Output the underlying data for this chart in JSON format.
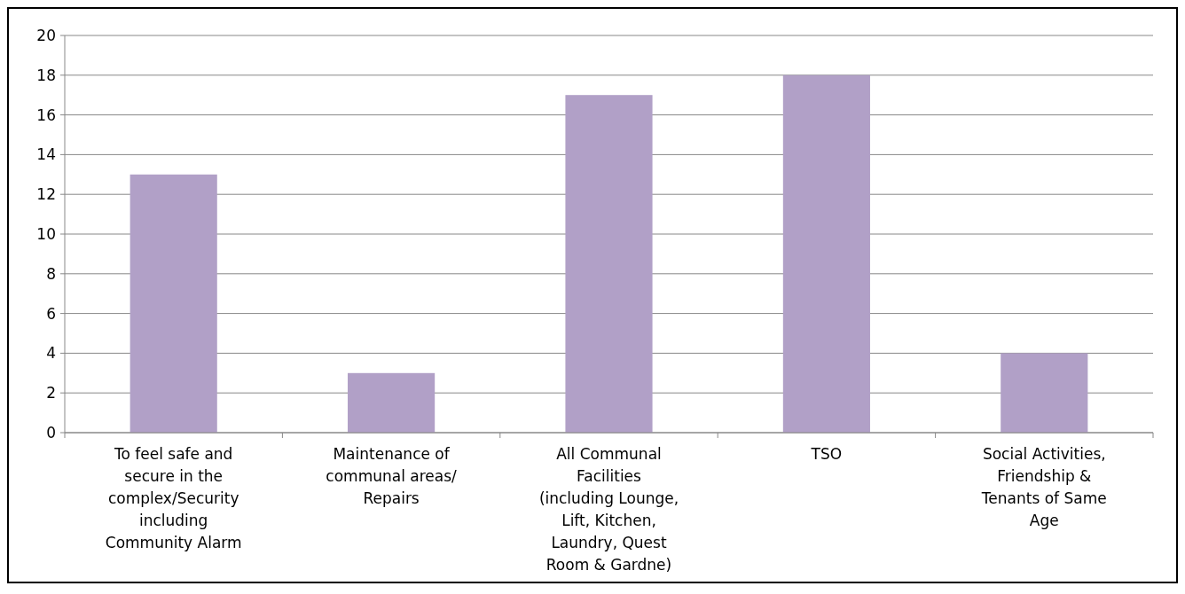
{
  "chart_data": {
    "type": "bar",
    "categories": [
      "To feel safe and secure in the complex/Security including Community Alarm",
      "Maintenance of communal areas/ Repairs",
      "All Communal Facilities (including Lounge, Lift, Kitchen, Laundry, Quest Room & Gardne)",
      "TSO",
      "Social Activities, Friendship & Tenants of Same Age"
    ],
    "values": [
      13,
      3,
      17,
      18,
      4
    ],
    "color": "#b1a0c7",
    "ylim": [
      0,
      20
    ],
    "yticks": [
      0,
      2,
      4,
      6,
      8,
      10,
      12,
      14,
      16,
      18,
      20
    ],
    "grid": "y"
  }
}
